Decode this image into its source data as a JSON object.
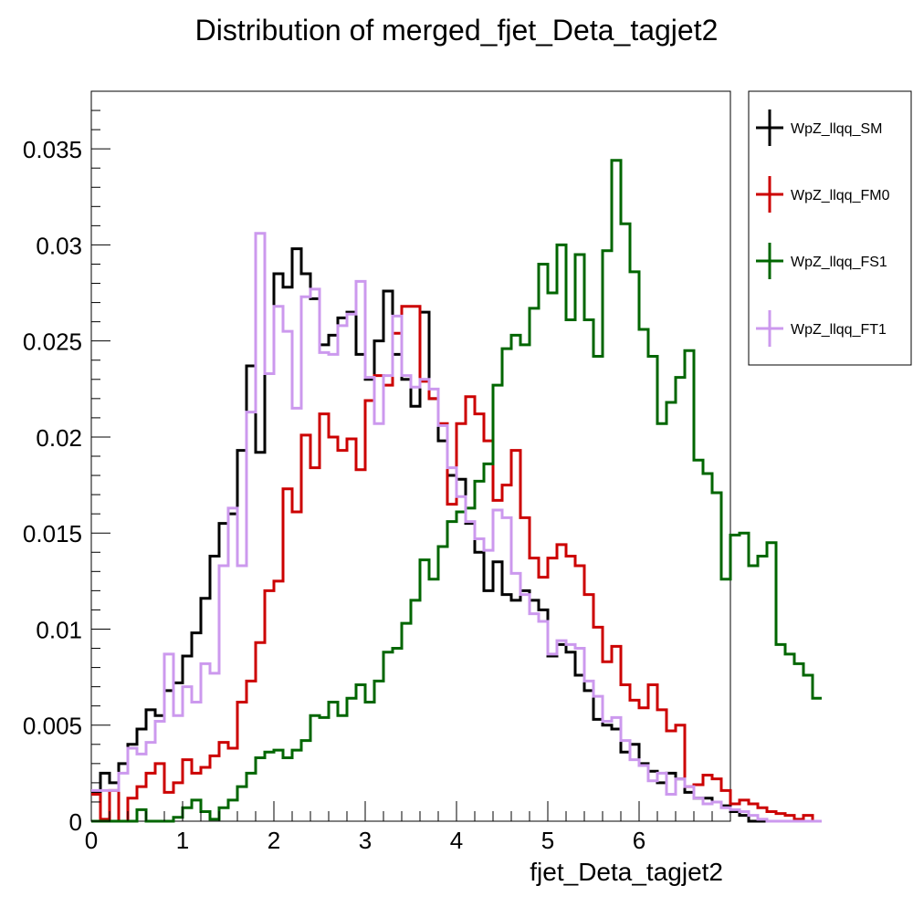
{
  "chart_data": {
    "type": "histogram-step",
    "title": "Distribution of merged_fjet_Deta_tagjet2",
    "xlabel": "fjet_Deta_tagjet2",
    "ylabel": "",
    "xlim": [
      0,
      7
    ],
    "ylim": [
      0,
      0.038
    ],
    "x_ticks": [
      0,
      1,
      2,
      3,
      4,
      5,
      6
    ],
    "y_ticks": [
      0,
      0.005,
      0.01,
      0.015,
      0.02,
      0.025,
      0.03,
      0.035
    ],
    "y_tick_labels": [
      "0",
      "0.005",
      "0.01",
      "0.015",
      "0.02",
      "0.025",
      "0.03",
      "0.035"
    ],
    "bin_width": 0.1,
    "bin_start": 0,
    "legend_position": "right",
    "series": [
      {
        "name": "WpZ_llqq_SM",
        "color": "#000000",
        "values": [
          0.0015,
          0.0025,
          0.002,
          0.003,
          0.004,
          0.0048,
          0.0058,
          0.0055,
          0.0068,
          0.0072,
          0.0086,
          0.0098,
          0.0116,
          0.0138,
          0.0155,
          0.016,
          0.0193,
          0.0237,
          0.0192,
          0.0233,
          0.0285,
          0.0278,
          0.0298,
          0.0285,
          0.0272,
          0.0248,
          0.0253,
          0.0262,
          0.0265,
          0.0243,
          0.023,
          0.025,
          0.0276,
          0.0243,
          0.023,
          0.0216,
          0.0265,
          0.022,
          0.0198,
          0.018,
          0.0178,
          0.0155,
          0.014,
          0.012,
          0.0135,
          0.0118,
          0.0115,
          0.012,
          0.0115,
          0.011,
          0.0086,
          0.0092,
          0.0088,
          0.0076,
          0.0068,
          0.0053,
          0.005,
          0.0048,
          0.0036,
          0.004,
          0.003,
          0.0026,
          0.002,
          0.0025,
          0.0022,
          0.0015,
          0.0012,
          0.0012,
          0.001,
          0.0008,
          0.0005,
          0.0003,
          0,
          0,
          0,
          0,
          0,
          0,
          0,
          0
        ]
      },
      {
        "name": "WpZ_llqq_FM0",
        "color": "#cc0000",
        "values": [
          0.0014,
          0.0001,
          0.0016,
          0.0,
          0.0012,
          0.0018,
          0.0025,
          0.003,
          0.0015,
          0.002,
          0.0032,
          0.0025,
          0.0028,
          0.0034,
          0.0041,
          0.0038,
          0.0062,
          0.0073,
          0.0093,
          0.012,
          0.0125,
          0.0173,
          0.0161,
          0.0201,
          0.0184,
          0.0212,
          0.02,
          0.0193,
          0.0199,
          0.0183,
          0.0219,
          0.0232,
          0.0227,
          0.0254,
          0.0268,
          0.0268,
          0.0229,
          0.022,
          0.0207,
          0.0165,
          0.0207,
          0.0221,
          0.0212,
          0.0198,
          0.0167,
          0.0175,
          0.0193,
          0.0158,
          0.0137,
          0.0127,
          0.0137,
          0.0144,
          0.0138,
          0.0133,
          0.0118,
          0.0101,
          0.0083,
          0.0091,
          0.0071,
          0.0063,
          0.0059,
          0.0071,
          0.0058,
          0.0047,
          0.005,
          0.0018,
          0.0019,
          0.0024,
          0.0022,
          0.0016,
          0.0009,
          0.0011,
          0.0009,
          0.0007,
          0.0005,
          0.0004,
          0.0003,
          0.0001,
          0.0003,
          0.0
        ]
      },
      {
        "name": "WpZ_llqq_FS1",
        "color": "#006600",
        "values": [
          0,
          0,
          0,
          0,
          0,
          0.0006,
          0,
          0,
          0,
          0.0002,
          0.0007,
          0.0011,
          0.0005,
          0.0001,
          0.0007,
          0.0011,
          0.0018,
          0.0025,
          0.0033,
          0.0036,
          0.0037,
          0.0033,
          0.0037,
          0.0042,
          0.0055,
          0.0054,
          0.0062,
          0.0055,
          0.0064,
          0.0071,
          0.0062,
          0.0073,
          0.0088,
          0.009,
          0.0103,
          0.0115,
          0.0136,
          0.0126,
          0.0143,
          0.0156,
          0.0161,
          0.0163,
          0.0177,
          0.0186,
          0.0227,
          0.0246,
          0.0253,
          0.0248,
          0.0267,
          0.029,
          0.0275,
          0.03,
          0.0261,
          0.0295,
          0.0261,
          0.0242,
          0.0297,
          0.0344,
          0.0311,
          0.0286,
          0.0256,
          0.0242,
          0.0207,
          0.0218,
          0.0231,
          0.0245,
          0.0188,
          0.0181,
          0.0171,
          0.0126,
          0.0149,
          0.015,
          0.0133,
          0.0138,
          0.0145,
          0.0092,
          0.0087,
          0.0082,
          0.0076,
          0.0064
        ]
      },
      {
        "name": "WpZ_llqq_FT1",
        "color": "#cc99ee",
        "values": [
          0.0016,
          0.0016,
          0.0016,
          0.0025,
          0.0038,
          0.0035,
          0.0041,
          0.0052,
          0.0087,
          0.0055,
          0.007,
          0.0062,
          0.0082,
          0.0077,
          0.0133,
          0.0163,
          0.0133,
          0.0213,
          0.0306,
          0.0233,
          0.0268,
          0.0255,
          0.0215,
          0.0273,
          0.0277,
          0.0244,
          0.0243,
          0.0258,
          0.0264,
          0.0281,
          0.0231,
          0.0207,
          0.0232,
          0.0263,
          0.0232,
          0.0226,
          0.023,
          0.0225,
          0.0206,
          0.0184,
          0.0169,
          0.0156,
          0.0147,
          0.0141,
          0.0162,
          0.0158,
          0.0129,
          0.0118,
          0.0108,
          0.0104,
          0.0087,
          0.0094,
          0.0092,
          0.009,
          0.0073,
          0.0065,
          0.0052,
          0.0054,
          0.0042,
          0.0032,
          0.0029,
          0.0021,
          0.0025,
          0.0014,
          0.0022,
          0.0018,
          0.0012,
          0.0009,
          0.001,
          0.0007,
          0.0006,
          0.0005,
          0.0003,
          0.0001,
          0,
          0,
          0,
          0,
          0,
          0
        ]
      }
    ]
  }
}
